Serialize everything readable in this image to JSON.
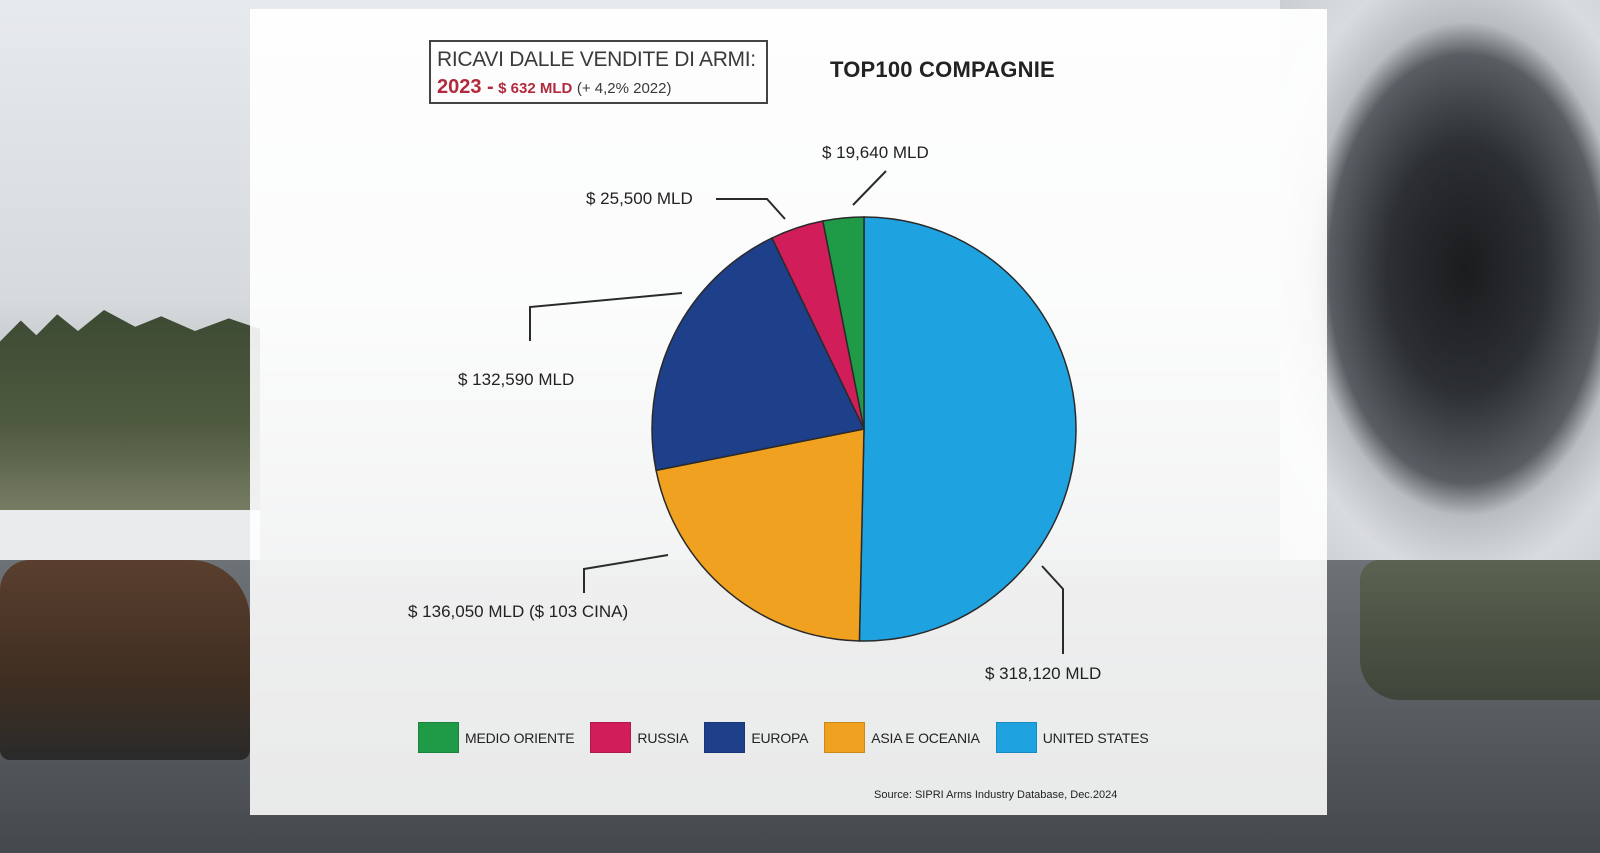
{
  "headline": {
    "line1": "RICAVI DALLE VENDITE DI ARMI:",
    "year": "2023 -",
    "total": "$ 632 MLD",
    "change": "(+ 4,2% 2022)"
  },
  "source": "Source: SIPRI Arms Industry Database, Dec.2024",
  "chart_data": {
    "type": "pie",
    "title": "TOP100 COMPAGNIE",
    "series": [
      {
        "name": "UNITED STATES",
        "value": 318.12,
        "label": "$ 318,120 MLD",
        "color": "#1fa3e0"
      },
      {
        "name": "ASIA E OCEANIA",
        "value": 136.05,
        "label": "$ 136,050 MLD ($ 103 CINA)",
        "color": "#efa11f"
      },
      {
        "name": "EUROPA",
        "value": 132.59,
        "label": "$ 132,590 MLD",
        "color": "#1e3f8a"
      },
      {
        "name": "RUSSIA",
        "value": 25.5,
        "label": "$ 25,500 MLD",
        "color": "#d11d5a"
      },
      {
        "name": "MEDIO ORIENTE",
        "value": 19.64,
        "label": "$ 19,640 MLD",
        "color": "#1f9a46"
      }
    ],
    "legend_order": [
      "MEDIO ORIENTE",
      "RUSSIA",
      "EUROPA",
      "ASIA E OCEANIA",
      "UNITED STATES"
    ],
    "legend_position": "bottom"
  }
}
